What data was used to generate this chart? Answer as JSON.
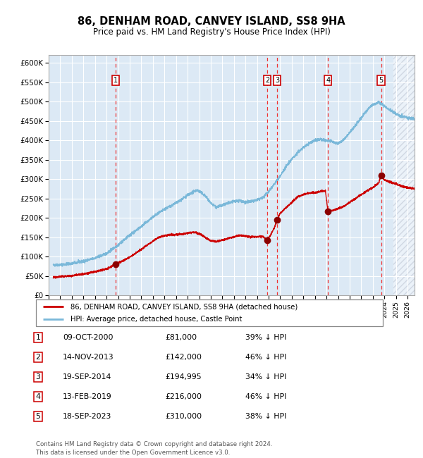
{
  "title": "86, DENHAM ROAD, CANVEY ISLAND, SS8 9HA",
  "subtitle": "Price paid vs. HM Land Registry's House Price Index (HPI)",
  "ylim": [
    0,
    620000
  ],
  "yticks": [
    0,
    50000,
    100000,
    150000,
    200000,
    250000,
    300000,
    350000,
    400000,
    450000,
    500000,
    550000,
    600000
  ],
  "ytick_labels": [
    "£0",
    "£50K",
    "£100K",
    "£150K",
    "£200K",
    "£250K",
    "£300K",
    "£350K",
    "£400K",
    "£450K",
    "£500K",
    "£550K",
    "£600K"
  ],
  "hpi_color": "#7ab8d9",
  "price_color": "#cc0000",
  "marker_color": "#8b0000",
  "vline_color": "#ee3333",
  "plot_bg": "#dce9f5",
  "grid_color": "#ffffff",
  "transactions": [
    {
      "label": "1",
      "date_num": 2000.79,
      "price": 81000
    },
    {
      "label": "2",
      "date_num": 2013.87,
      "price": 142000
    },
    {
      "label": "3",
      "date_num": 2014.72,
      "price": 194995
    },
    {
      "label": "4",
      "date_num": 2019.12,
      "price": 216000
    },
    {
      "label": "5",
      "date_num": 2023.72,
      "price": 310000
    }
  ],
  "table_data": [
    [
      "1",
      "09-OCT-2000",
      "£81,000",
      "39% ↓ HPI"
    ],
    [
      "2",
      "14-NOV-2013",
      "£142,000",
      "46% ↓ HPI"
    ],
    [
      "3",
      "19-SEP-2014",
      "£194,995",
      "34% ↓ HPI"
    ],
    [
      "4",
      "13-FEB-2019",
      "£216,000",
      "46% ↓ HPI"
    ],
    [
      "5",
      "18-SEP-2023",
      "£310,000",
      "38% ↓ HPI"
    ]
  ],
  "legend_labels": [
    "86, DENHAM ROAD, CANVEY ISLAND, SS8 9HA (detached house)",
    "HPI: Average price, detached house, Castle Point"
  ],
  "footnote": "Contains HM Land Registry data © Crown copyright and database right 2024.\nThis data is licensed under the Open Government Licence v3.0.",
  "xmin": 1995.4,
  "xmax": 2026.6,
  "future_shade_start": 2024.75,
  "hpi_anchors": [
    [
      1995.4,
      78000
    ],
    [
      1996.0,
      79000
    ],
    [
      1997.0,
      82000
    ],
    [
      1998.0,
      88000
    ],
    [
      1999.0,
      96000
    ],
    [
      2000.0,
      108000
    ],
    [
      2001.0,
      130000
    ],
    [
      2002.0,
      155000
    ],
    [
      2003.0,
      178000
    ],
    [
      2004.0,
      202000
    ],
    [
      2005.0,
      222000
    ],
    [
      2006.0,
      238000
    ],
    [
      2007.0,
      258000
    ],
    [
      2007.8,
      272000
    ],
    [
      2008.5,
      258000
    ],
    [
      2009.0,
      238000
    ],
    [
      2009.5,
      228000
    ],
    [
      2010.0,
      232000
    ],
    [
      2010.5,
      238000
    ],
    [
      2011.0,
      242000
    ],
    [
      2011.5,
      245000
    ],
    [
      2012.0,
      240000
    ],
    [
      2012.5,
      242000
    ],
    [
      2013.0,
      246000
    ],
    [
      2013.5,
      252000
    ],
    [
      2014.0,
      268000
    ],
    [
      2014.5,
      288000
    ],
    [
      2015.0,
      308000
    ],
    [
      2015.5,
      332000
    ],
    [
      2016.0,
      352000
    ],
    [
      2016.5,
      368000
    ],
    [
      2017.0,
      382000
    ],
    [
      2017.5,
      392000
    ],
    [
      2018.0,
      400000
    ],
    [
      2018.5,
      402000
    ],
    [
      2019.0,
      400000
    ],
    [
      2019.5,
      396000
    ],
    [
      2020.0,
      392000
    ],
    [
      2020.5,
      402000
    ],
    [
      2021.0,
      420000
    ],
    [
      2021.5,
      438000
    ],
    [
      2022.0,
      458000
    ],
    [
      2022.5,
      478000
    ],
    [
      2023.0,
      492000
    ],
    [
      2023.5,
      498000
    ],
    [
      2024.0,
      488000
    ],
    [
      2024.5,
      478000
    ],
    [
      2025.0,
      468000
    ],
    [
      2025.5,
      462000
    ],
    [
      2026.0,
      458000
    ],
    [
      2026.6,
      455000
    ]
  ],
  "price_anchors": [
    [
      1995.4,
      47000
    ],
    [
      1996.0,
      48500
    ],
    [
      1997.0,
      51000
    ],
    [
      1998.0,
      55000
    ],
    [
      1999.0,
      61000
    ],
    [
      2000.0,
      68000
    ],
    [
      2000.79,
      81000
    ],
    [
      2001.5,
      90000
    ],
    [
      2002.5,
      108000
    ],
    [
      2003.5,
      130000
    ],
    [
      2004.5,
      150000
    ],
    [
      2005.0,
      154000
    ],
    [
      2005.5,
      156000
    ],
    [
      2006.5,
      158000
    ],
    [
      2007.5,
      163000
    ],
    [
      2008.0,
      160000
    ],
    [
      2008.5,
      150000
    ],
    [
      2009.0,
      141000
    ],
    [
      2009.5,
      139000
    ],
    [
      2010.0,
      143000
    ],
    [
      2010.5,
      147000
    ],
    [
      2011.0,
      151000
    ],
    [
      2011.5,
      155000
    ],
    [
      2012.0,
      153000
    ],
    [
      2012.5,
      151000
    ],
    [
      2013.0,
      151000
    ],
    [
      2013.5,
      152000
    ],
    [
      2013.87,
      142000
    ],
    [
      2014.2,
      158000
    ],
    [
      2014.5,
      175000
    ],
    [
      2014.72,
      194995
    ],
    [
      2015.0,
      212000
    ],
    [
      2015.5,
      226000
    ],
    [
      2016.0,
      240000
    ],
    [
      2016.5,
      254000
    ],
    [
      2017.0,
      260000
    ],
    [
      2017.5,
      264000
    ],
    [
      2018.0,
      265000
    ],
    [
      2018.5,
      268000
    ],
    [
      2018.9,
      270000
    ],
    [
      2019.12,
      216000
    ],
    [
      2019.5,
      219000
    ],
    [
      2020.0,
      224000
    ],
    [
      2020.5,
      230000
    ],
    [
      2021.0,
      240000
    ],
    [
      2021.5,
      250000
    ],
    [
      2022.0,
      260000
    ],
    [
      2022.5,
      270000
    ],
    [
      2023.0,
      278000
    ],
    [
      2023.5,
      290000
    ],
    [
      2023.72,
      310000
    ],
    [
      2024.0,
      298000
    ],
    [
      2024.5,
      292000
    ],
    [
      2025.0,
      288000
    ],
    [
      2025.5,
      282000
    ],
    [
      2026.0,
      278000
    ],
    [
      2026.6,
      275000
    ]
  ]
}
